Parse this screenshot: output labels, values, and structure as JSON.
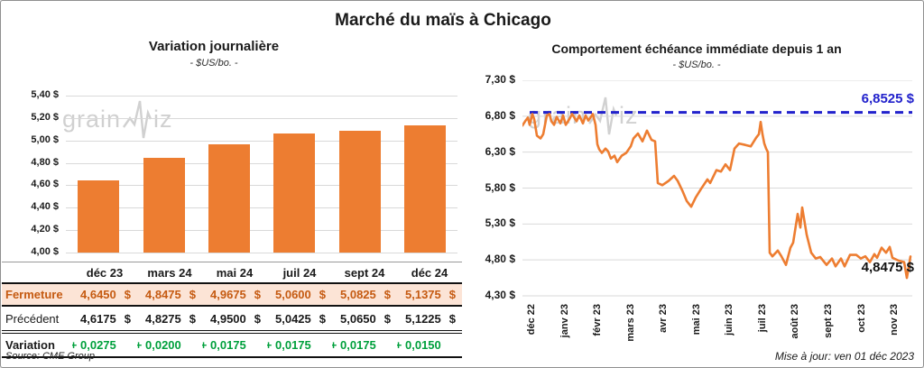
{
  "title": "Marché du maïs à Chicago",
  "source": "Source: CME Group",
  "update_note": "Mise à jour: ven 01 déc 2023",
  "watermark": {
    "prefix": "grain",
    "suffix": "iz"
  },
  "colors": {
    "accent_orange": "#ED7D31",
    "fermeture_bg": "#FCE4D6",
    "fermeture_text": "#C55A11",
    "variation_green": "#00A03C",
    "reference_blue": "#2222CC",
    "gridline_gray": "#D9D9D9",
    "watermark_gray": "#B2B2B2"
  },
  "chart_data": [
    {
      "type": "bar",
      "title": "Variation journalière",
      "subtitle": "- $US/bo. -",
      "categories": [
        "déc 23",
        "mars 24",
        "mai 24",
        "juil 24",
        "sept 24",
        "déc 24"
      ],
      "values": [
        4.645,
        4.8475,
        4.9675,
        5.06,
        5.0825,
        5.1375
      ],
      "ylim": [
        4.0,
        5.4
      ],
      "y_tick_labels": [
        "5,40 $",
        "5,20 $",
        "5,00 $",
        "4,80 $",
        "4,60 $",
        "4,40 $",
        "4,20 $",
        "4,00 $"
      ],
      "grid": true,
      "bar_color": "#ED7D31"
    },
    {
      "type": "line",
      "title": "Comportement échéance immédiate depuis 1 an",
      "subtitle": "- $US/bo. -",
      "ylim": [
        4.3,
        7.3
      ],
      "y_tick_labels": [
        "7,30 $",
        "6,80 $",
        "6,30 $",
        "5,80 $",
        "5,30 $",
        "4,80 $",
        "4,30 $"
      ],
      "x_tick_labels": [
        "déc 22",
        "janv 23",
        "févr 23",
        "mars 23",
        "avr 23",
        "mai 23",
        "juin 23",
        "juil 23",
        "août 23",
        "sept 23",
        "oct 23",
        "nov 23"
      ],
      "line_color": "#ED7D31",
      "grid": true,
      "legend": "none",
      "reference_line": {
        "value": 6.8525,
        "label": "6,8525 $",
        "color": "#2222CC",
        "style": "dashed"
      },
      "end_label": "4,8475 $",
      "end_value": 4.8475,
      "points": [
        [
          0,
          6.67
        ],
        [
          3,
          6.73
        ],
        [
          6,
          6.78
        ],
        [
          8,
          6.68
        ],
        [
          11,
          6.83
        ],
        [
          13,
          6.76
        ],
        [
          16,
          6.53
        ],
        [
          20,
          6.49
        ],
        [
          23,
          6.55
        ],
        [
          27,
          6.81
        ],
        [
          30,
          6.83
        ],
        [
          32,
          6.73
        ],
        [
          35,
          6.68
        ],
        [
          38,
          6.79
        ],
        [
          42,
          6.7
        ],
        [
          45,
          6.81
        ],
        [
          48,
          6.68
        ],
        [
          52,
          6.76
        ],
        [
          55,
          6.83
        ],
        [
          60,
          6.73
        ],
        [
          63,
          6.81
        ],
        [
          67,
          6.7
        ],
        [
          70,
          6.81
        ],
        [
          73,
          6.74
        ],
        [
          78,
          6.83
        ],
        [
          81,
          6.68
        ],
        [
          83,
          6.41
        ],
        [
          85,
          6.34
        ],
        [
          88,
          6.29
        ],
        [
          92,
          6.35
        ],
        [
          95,
          6.31
        ],
        [
          98,
          6.21
        ],
        [
          102,
          6.25
        ],
        [
          105,
          6.16
        ],
        [
          110,
          6.25
        ],
        [
          115,
          6.29
        ],
        [
          120,
          6.38
        ],
        [
          123,
          6.49
        ],
        [
          128,
          6.56
        ],
        [
          133,
          6.45
        ],
        [
          138,
          6.6
        ],
        [
          143,
          6.47
        ],
        [
          147,
          6.45
        ],
        [
          150,
          5.87
        ],
        [
          155,
          5.84
        ],
        [
          162,
          5.9
        ],
        [
          168,
          5.97
        ],
        [
          172,
          5.9
        ],
        [
          177,
          5.77
        ],
        [
          182,
          5.62
        ],
        [
          187,
          5.54
        ],
        [
          192,
          5.67
        ],
        [
          198,
          5.79
        ],
        [
          205,
          5.92
        ],
        [
          208,
          5.87
        ],
        [
          215,
          6.05
        ],
        [
          220,
          6.03
        ],
        [
          225,
          6.13
        ],
        [
          230,
          6.05
        ],
        [
          235,
          6.35
        ],
        [
          240,
          6.42
        ],
        [
          247,
          6.4
        ],
        [
          253,
          6.38
        ],
        [
          259,
          6.5
        ],
        [
          262,
          6.55
        ],
        [
          264,
          6.72
        ],
        [
          266,
          6.55
        ],
        [
          268,
          6.42
        ],
        [
          270,
          6.35
        ],
        [
          272,
          6.3
        ],
        [
          274,
          4.9
        ],
        [
          277,
          4.85
        ],
        [
          283,
          4.93
        ],
        [
          287,
          4.85
        ],
        [
          292,
          4.73
        ],
        [
          297,
          4.97
        ],
        [
          300,
          5.04
        ],
        [
          305,
          5.44
        ],
        [
          308,
          5.25
        ],
        [
          310,
          5.53
        ],
        [
          315,
          5.15
        ],
        [
          320,
          4.9
        ],
        [
          325,
          4.82
        ],
        [
          330,
          4.84
        ],
        [
          337,
          4.73
        ],
        [
          343,
          4.82
        ],
        [
          347,
          4.71
        ],
        [
          353,
          4.82
        ],
        [
          357,
          4.71
        ],
        [
          363,
          4.87
        ],
        [
          370,
          4.87
        ],
        [
          375,
          4.82
        ],
        [
          380,
          4.85
        ],
        [
          385,
          4.77
        ],
        [
          390,
          4.88
        ],
        [
          393,
          4.83
        ],
        [
          398,
          4.97
        ],
        [
          403,
          4.9
        ],
        [
          407,
          4.98
        ],
        [
          410,
          4.83
        ],
        [
          417,
          4.79
        ],
        [
          423,
          4.77
        ],
        [
          426,
          4.55
        ],
        [
          430,
          4.8475
        ]
      ]
    },
    {
      "type": "table",
      "header": [
        "",
        "déc 23",
        "mars 24",
        "mai 24",
        "juil 24",
        "sept 24",
        "déc 24"
      ],
      "rows": [
        {
          "label": "Fermeture",
          "style": "fermeture",
          "values": [
            "4,6450 $",
            "4,8475 $",
            "4,9675 $",
            "5,0600 $",
            "5,0825 $",
            "5,1375 $"
          ]
        },
        {
          "label": "Précédent",
          "style": "precedent",
          "values": [
            "4,6175 $",
            "4,8275 $",
            "4,9500 $",
            "5,0425 $",
            "5,0650 $",
            "5,1225 $"
          ]
        },
        {
          "label": "Variation",
          "style": "variation",
          "values": [
            "+ 0,0275",
            "+ 0,0200",
            "+ 0,0175",
            "+ 0,0175",
            "+ 0,0175",
            "+ 0,0150"
          ]
        }
      ]
    }
  ]
}
